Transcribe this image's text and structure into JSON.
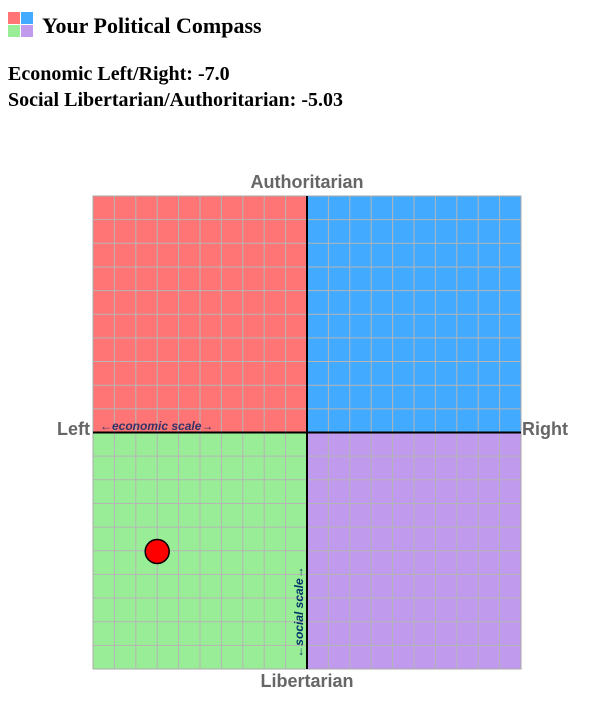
{
  "chart_data": {
    "type": "scatter",
    "title": "Your Political Compass",
    "readout": [
      "Economic Left/Right:",
      "Social Libertarian/Authoritarian:"
    ],
    "y_label_top": "Authoritarian",
    "y_label_bottom": "Libertarian",
    "x_label_left": "Left",
    "x_label_right": "Right",
    "x_scale_label": "←economic scale→",
    "y_scale_label": "←social scale→",
    "xlim": [
      -10,
      10
    ],
    "ylim": [
      -10,
      10
    ],
    "grid": true,
    "quadrant_colors": [
      "#ff7575",
      "#42aaff",
      "#9aed97",
      "#c09aec"
    ],
    "series": [
      {
        "x": [
          -7
        ],
        "x_labels": [
          "-7.0"
        ],
        "values": [
          -5.03
        ],
        "color": "#ff0000"
      }
    ]
  }
}
